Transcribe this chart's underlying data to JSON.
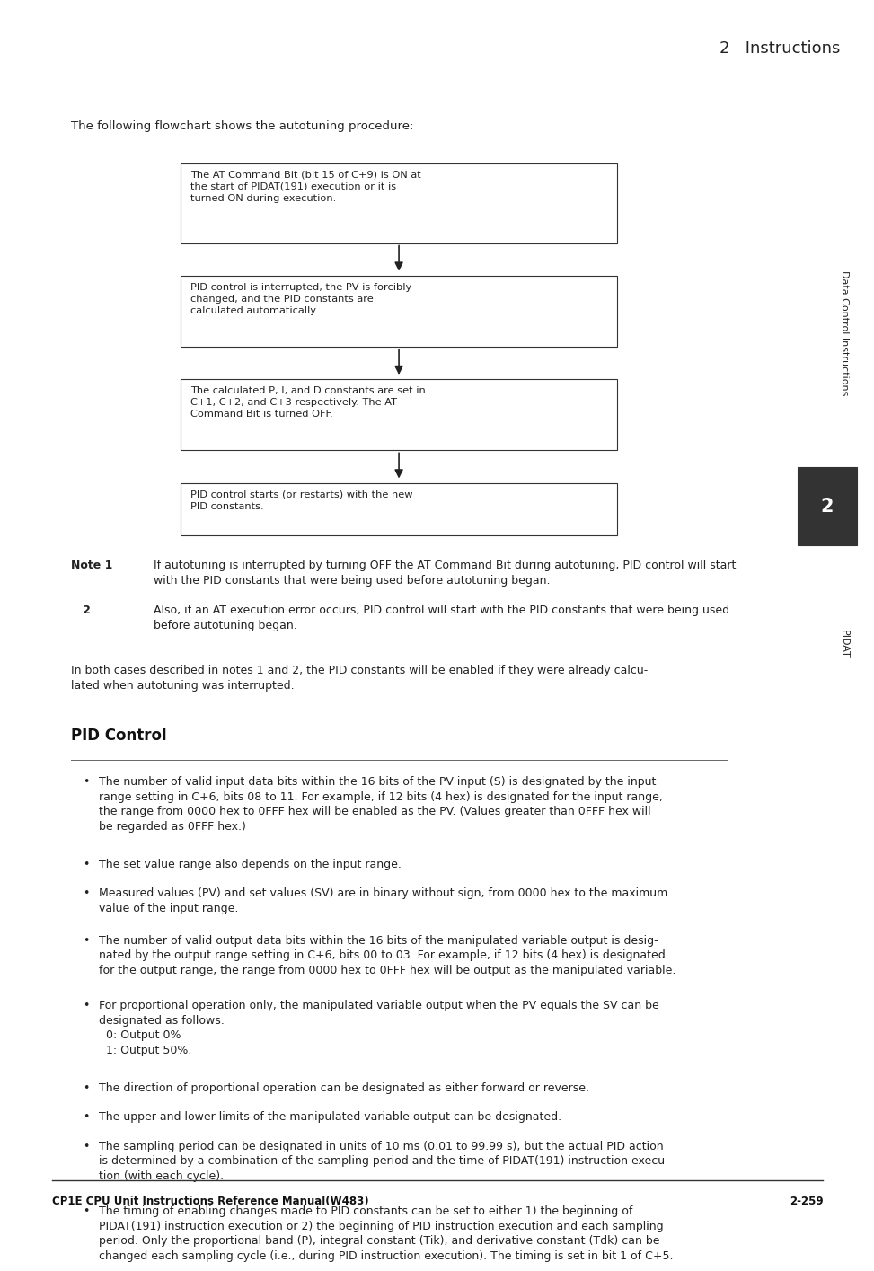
{
  "page_title": "2   Instructions",
  "footer_left": "CP1E CPU Unit Instructions Reference Manual(W483)",
  "footer_right": "2-259",
  "header_bg": "#e8e8e8",
  "body_bg": "#ffffff",
  "intro_text": "The following flowchart shows the autotuning procedure:",
  "flowchart_boxes": [
    "The AT Command Bit (bit 15 of C+9) is ON at\nthe start of PIDAT(191) execution or it is\nturned ON during execution.",
    "PID control is interrupted, the PV is forcibly\nchanged, and the PID constants are\ncalculated automatically.",
    "The calculated P, I, and D constants are set in\nC+1, C+2, and C+3 respectively. The AT\nCommand Bit is turned OFF.",
    "PID control starts (or restarts) with the new\nPID constants."
  ],
  "note1_label": "Note 1",
  "note1": "If autotuning is interrupted by turning OFF the AT Command Bit during autotuning, PID control will start\nwith the PID constants that were being used before autotuning began.",
  "note2_label": "   2",
  "note2": "Also, if an AT execution error occurs, PID control will start with the PID constants that were being used\nbefore autotuning began.",
  "in_both": "In both cases described in notes 1 and 2, the PID constants will be enabled if they were already calcu-\nlated when autotuning was interrupted.",
  "pid_title": "PID Control",
  "bullet_points": [
    "The number of valid input data bits within the 16 bits of the PV input (S) is designated by the input\nrange setting in C+6, bits 08 to 11. For example, if 12 bits (4 hex) is designated for the input range,\nthe range from 0000 hex to 0FFF hex will be enabled as the PV. (Values greater than 0FFF hex will\nbe regarded as 0FFF hex.)",
    "The set value range also depends on the input range.",
    "Measured values (PV) and set values (SV) are in binary without sign, from 0000 hex to the maximum\nvalue of the input range.",
    "The number of valid output data bits within the 16 bits of the manipulated variable output is desig-\nnated by the output range setting in C+6, bits 00 to 03. For example, if 12 bits (4 hex) is designated\nfor the output range, the range from 0000 hex to 0FFF hex will be output as the manipulated variable.",
    "For proportional operation only, the manipulated variable output when the PV equals the SV can be\ndesignated as follows:\n  0: Output 0%\n  1: Output 50%.",
    "The direction of proportional operation can be designated as either forward or reverse.",
    "The upper and lower limits of the manipulated variable output can be designated.",
    "The sampling period can be designated in units of 10 ms (0.01 to 99.99 s), but the actual PID action\nis determined by a combination of the sampling period and the time of PIDAT(191) instruction execu-\ntion (with each cycle).",
    "The timing of enabling changes made to PID constants can be set to either 1) the beginning of\nPIDAT(191) instruction execution or 2) the beginning of PID instruction execution and each sampling\nperiod. Only the proportional band (P), integral constant (Tik), and derivative constant (Tdk) can be\nchanged each sampling cycle (i.e., during PID instruction execution). The timing is set in bit 1 of C+5."
  ],
  "sidebar_text": "Data Control Instructions",
  "sidebar_num": "2",
  "sidebar_pid": "PIDAT"
}
